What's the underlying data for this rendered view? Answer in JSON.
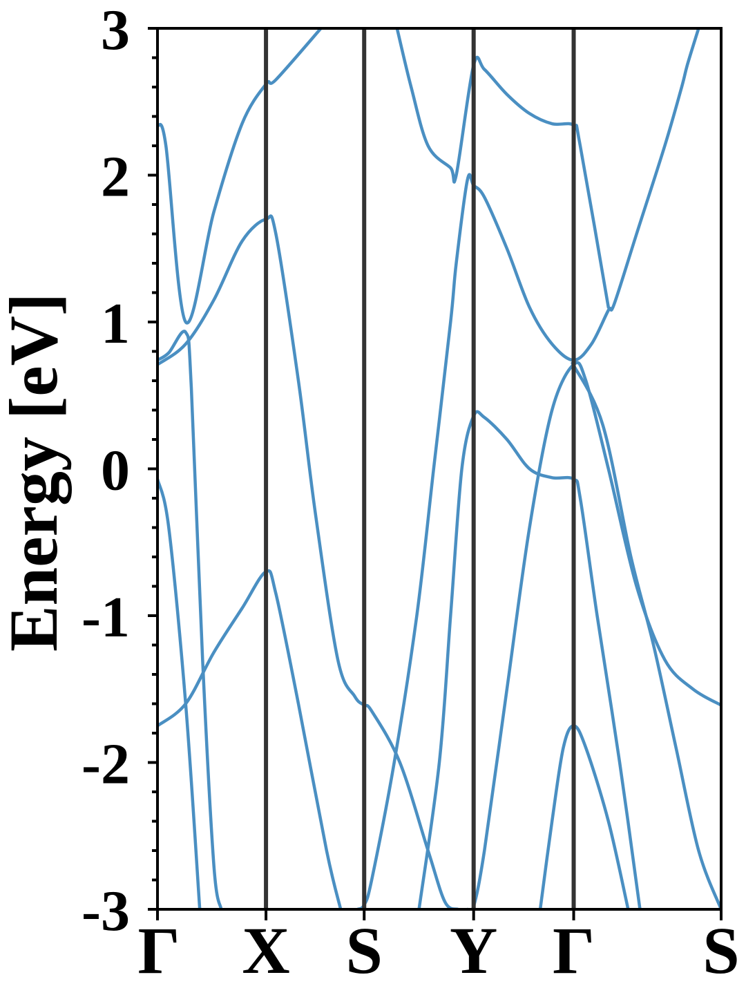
{
  "chart_data": {
    "type": "line",
    "title": "",
    "xlabel": "",
    "ylabel": "Energy [eV]",
    "ylim": [
      -3,
      3
    ],
    "yticks": [
      -3,
      -2,
      -1,
      0,
      1,
      2,
      3
    ],
    "ytick_labels": [
      "-3",
      "-2",
      "-1",
      "0",
      "1",
      "2",
      "3"
    ],
    "grid": false,
    "k_path": [
      {
        "label": "Γ",
        "k": 0.0
      },
      {
        "label": "X",
        "k": 0.1925
      },
      {
        "label": "S",
        "k": 0.3667
      },
      {
        "label": "Y",
        "k": 0.5609
      },
      {
        "label": "Γ",
        "k": 0.7384
      },
      {
        "label": "S",
        "k": 1.0
      }
    ],
    "colors": {
      "band": "#4a8fc2",
      "kline": "#333333",
      "axis": "#000000"
    },
    "series": [
      {
        "points": [
          [
            0.0,
            -1.75
          ],
          [
            0.05,
            -1.6
          ],
          [
            0.1,
            -1.25
          ],
          [
            0.15,
            -0.95
          ],
          [
            0.1925,
            -0.7
          ],
          [
            0.21,
            -0.85
          ],
          [
            0.25,
            -1.6
          ],
          [
            0.3,
            -2.6
          ],
          [
            0.325,
            -3.0
          ]
        ]
      },
      {
        "points": [
          [
            0.0,
            -0.07
          ],
          [
            0.02,
            -0.4
          ],
          [
            0.05,
            -1.6
          ],
          [
            0.075,
            -3.0
          ]
        ]
      },
      {
        "points": [
          [
            0.0,
            0.71
          ],
          [
            0.05,
            0.85
          ],
          [
            0.1,
            1.15
          ],
          [
            0.15,
            1.55
          ],
          [
            0.1925,
            1.7
          ],
          [
            0.21,
            1.6
          ],
          [
            0.25,
            0.6
          ],
          [
            0.28,
            -0.3
          ],
          [
            0.32,
            -1.3
          ],
          [
            0.35,
            -1.55
          ],
          [
            0.3667,
            -1.61
          ],
          [
            0.38,
            -1.65
          ],
          [
            0.43,
            -2.0
          ],
          [
            0.48,
            -2.6
          ],
          [
            0.51,
            -2.95
          ],
          [
            0.533,
            -3.0
          ]
        ]
      },
      {
        "points": [
          [
            0.0,
            0.74
          ],
          [
            0.02,
            0.79
          ],
          [
            0.05,
            0.93
          ],
          [
            0.06,
            0.55
          ],
          [
            0.08,
            -1.3
          ],
          [
            0.1,
            -2.7
          ],
          [
            0.113,
            -3.0
          ]
        ]
      },
      {
        "points": [
          [
            0.0,
            2.34
          ],
          [
            0.015,
            2.2
          ],
          [
            0.05,
            1.0
          ],
          [
            0.1,
            1.75
          ],
          [
            0.15,
            2.35
          ],
          [
            0.1925,
            2.62
          ],
          [
            0.21,
            2.65
          ],
          [
            0.29,
            3.0
          ]
        ]
      },
      {
        "points": [
          [
            0.355,
            -3.0
          ],
          [
            0.3667,
            -2.97
          ],
          [
            0.38,
            -2.8
          ],
          [
            0.42,
            -2.0
          ],
          [
            0.46,
            -1.0
          ],
          [
            0.49,
            0.0
          ],
          [
            0.52,
            1.0
          ],
          [
            0.53,
            1.4
          ],
          [
            0.55,
            1.97
          ],
          [
            0.5609,
            1.93
          ],
          [
            0.58,
            1.85
          ],
          [
            0.62,
            1.5
          ],
          [
            0.66,
            1.1
          ],
          [
            0.7,
            0.85
          ],
          [
            0.7384,
            0.74
          ],
          [
            0.77,
            0.85
          ],
          [
            0.8,
            1.08
          ],
          [
            0.81,
            1.12
          ],
          [
            0.85,
            1.6
          ],
          [
            0.9,
            2.2
          ],
          [
            0.93,
            2.6
          ],
          [
            0.94,
            2.75
          ],
          [
            0.96,
            3.0
          ]
        ]
      },
      {
        "points": [
          [
            0.425,
            3.0
          ],
          [
            0.45,
            2.6
          ],
          [
            0.48,
            2.2
          ],
          [
            0.52,
            2.05
          ],
          [
            0.53,
            2.0
          ],
          [
            0.5609,
            2.75
          ],
          [
            0.58,
            2.72
          ],
          [
            0.62,
            2.55
          ],
          [
            0.66,
            2.42
          ],
          [
            0.7,
            2.35
          ],
          [
            0.7384,
            2.34
          ],
          [
            0.75,
            2.2
          ],
          [
            0.8,
            1.1
          ]
        ]
      },
      {
        "points": [
          [
            0.55,
            -3.0
          ],
          [
            0.5609,
            -2.98
          ],
          [
            0.58,
            -2.6
          ],
          [
            0.62,
            -1.5
          ],
          [
            0.66,
            -0.4
          ],
          [
            0.7,
            0.4
          ],
          [
            0.7384,
            0.71
          ],
          [
            0.76,
            0.6
          ],
          [
            0.8,
            0.0
          ],
          [
            0.85,
            -0.8
          ],
          [
            0.9,
            -1.3
          ],
          [
            0.95,
            -1.5
          ],
          [
            1.0,
            -1.61
          ]
        ]
      },
      {
        "points": [
          [
            0.464,
            -3.0
          ],
          [
            0.5,
            -2.0
          ],
          [
            0.52,
            -1.0
          ],
          [
            0.54,
            0.0
          ],
          [
            0.5609,
            0.36
          ],
          [
            0.58,
            0.35
          ],
          [
            0.62,
            0.2
          ],
          [
            0.66,
            0.0
          ],
          [
            0.7,
            -0.06
          ],
          [
            0.7384,
            -0.07
          ],
          [
            0.75,
            -0.2
          ],
          [
            0.78,
            -1.0
          ],
          [
            0.82,
            -2.0
          ],
          [
            0.856,
            -3.0
          ]
        ]
      },
      {
        "points": [
          [
            0.679,
            -3.0
          ],
          [
            0.7,
            -2.4
          ],
          [
            0.72,
            -1.9
          ],
          [
            0.7384,
            -1.75
          ],
          [
            0.76,
            -1.9
          ],
          [
            0.8,
            -2.4
          ],
          [
            0.835,
            -3.0
          ]
        ]
      },
      {
        "points": [
          [
            0.736,
            0.72
          ],
          [
            0.79,
            0.3
          ],
          [
            0.84,
            -0.6
          ],
          [
            0.88,
            -1.2
          ],
          [
            0.92,
            -1.9
          ],
          [
            0.96,
            -2.6
          ],
          [
            1.0,
            -3.0
          ]
        ]
      }
    ]
  }
}
